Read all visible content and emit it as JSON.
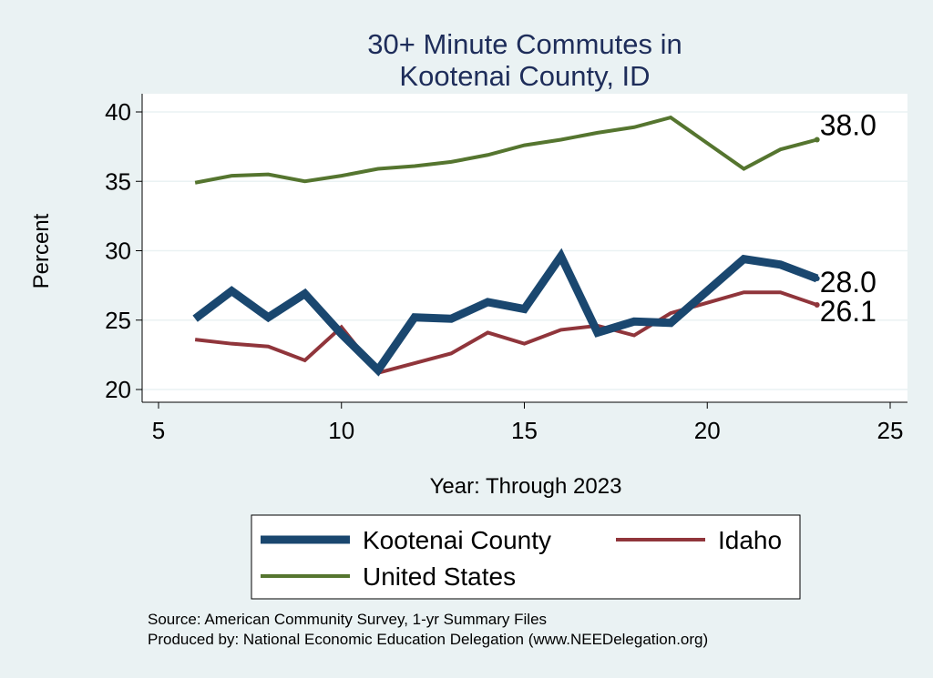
{
  "chart_data": {
    "type": "line",
    "title": [
      "30+ Minute Commutes in",
      "Kootenai County, ID"
    ],
    "xlabel": "Year: Through 2023",
    "ylabel": "Percent",
    "xlim": [
      5,
      25
    ],
    "ylim": [
      20,
      40
    ],
    "xticks": [
      "5",
      "10",
      "15",
      "20",
      "25"
    ],
    "yticks": [
      "20",
      "25",
      "30",
      "35",
      "40"
    ],
    "grid": true,
    "series": [
      {
        "name": "Kootenai County",
        "color": "#1a476f",
        "x": [
          6,
          7,
          8,
          9,
          10,
          11,
          12,
          13,
          14,
          15,
          16,
          17,
          18,
          19,
          21,
          22,
          23
        ],
        "y": [
          25.1,
          27.1,
          25.2,
          26.9,
          24.0,
          21.4,
          25.2,
          25.1,
          26.3,
          25.8,
          29.6,
          24.1,
          24.9,
          24.8,
          29.4,
          29.0,
          28.0
        ],
        "end_label": "28.0"
      },
      {
        "name": "Idaho",
        "color": "#90353b",
        "x": [
          6,
          7,
          8,
          9,
          10,
          11,
          12,
          13,
          14,
          15,
          16,
          17,
          18,
          19,
          21,
          22,
          23
        ],
        "y": [
          23.6,
          23.3,
          23.1,
          22.1,
          24.5,
          21.2,
          21.9,
          22.6,
          24.1,
          23.3,
          24.3,
          24.6,
          23.9,
          25.5,
          27.0,
          27.0,
          26.1
        ],
        "end_label": "26.1"
      },
      {
        "name": "United States",
        "color": "#55752f",
        "x": [
          6,
          7,
          8,
          9,
          10,
          11,
          12,
          13,
          14,
          15,
          16,
          17,
          18,
          19,
          21,
          22,
          23
        ],
        "y": [
          34.9,
          35.4,
          35.5,
          35.0,
          35.4,
          35.9,
          36.1,
          36.4,
          36.9,
          37.6,
          38.0,
          38.5,
          38.9,
          39.6,
          35.9,
          37.3,
          38.0
        ],
        "end_label": "38.0"
      }
    ],
    "source_lines": [
      "Source: American Community Survey, 1-yr Summary Files",
      "Produced by: National Economic Education Delegation (www.NEEDelegation.org)"
    ]
  }
}
